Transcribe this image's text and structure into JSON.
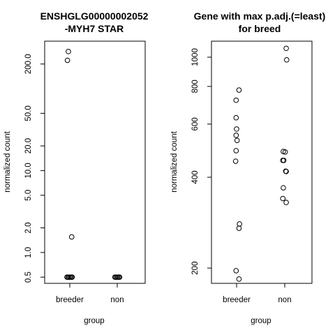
{
  "chart_data": [
    {
      "type": "scatter",
      "title_lines": [
        "ENSHGLG00000002052",
        "-MYH7 STAR"
      ],
      "xlabel": "group",
      "ylabel": "normalized count",
      "categories": [
        "breeder",
        "non"
      ],
      "y_scale": "log",
      "ylim": [
        0.42,
        380
      ],
      "y_ticks": [
        0.5,
        1.0,
        2.0,
        5.0,
        10.0,
        20.0,
        50.0,
        200.0
      ],
      "y_tick_labels": [
        "0.5",
        "1.0",
        "2.0",
        "5.0",
        "10.0",
        "20.0",
        "50.0",
        "200.0"
      ],
      "series": [
        {
          "points": [
            {
              "x": "breeder",
              "y": 284,
              "jitter": -0.03
            },
            {
              "x": "breeder",
              "y": 222,
              "jitter": -0.05
            },
            {
              "x": "breeder",
              "y": 1.55,
              "jitter": 0.04
            },
            {
              "x": "breeder",
              "y": 0.5,
              "jitter": -0.06
            },
            {
              "x": "breeder",
              "y": 0.5,
              "jitter": -0.04
            },
            {
              "x": "breeder",
              "y": 0.5,
              "jitter": -0.02
            },
            {
              "x": "breeder",
              "y": 0.5,
              "jitter": 0.0
            },
            {
              "x": "breeder",
              "y": 0.5,
              "jitter": 0.02
            },
            {
              "x": "breeder",
              "y": 0.5,
              "jitter": 0.04
            },
            {
              "x": "breeder",
              "y": 0.5,
              "jitter": 0.05
            },
            {
              "x": "non",
              "y": 0.5,
              "jitter": -0.05
            },
            {
              "x": "non",
              "y": 0.5,
              "jitter": -0.03
            },
            {
              "x": "non",
              "y": 0.5,
              "jitter": -0.01
            },
            {
              "x": "non",
              "y": 0.5,
              "jitter": 0.01
            },
            {
              "x": "non",
              "y": 0.5,
              "jitter": 0.03
            },
            {
              "x": "non",
              "y": 0.5,
              "jitter": 0.05
            }
          ]
        }
      ]
    },
    {
      "type": "scatter",
      "title_lines": [
        "Gene with max p.adj.(=least)",
        "for breed"
      ],
      "xlabel": "group",
      "ylabel": "normalized count",
      "categories": [
        "breeder",
        "non"
      ],
      "y_scale": "log",
      "ylim": [
        178,
        1130
      ],
      "y_ticks": [
        200,
        400,
        600,
        800,
        1000
      ],
      "y_tick_labels": [
        "200",
        "400",
        "600",
        "800",
        "1000"
      ],
      "series": [
        {
          "points": [
            {
              "x": "breeder",
              "y": 778,
              "jitter": 0.05
            },
            {
              "x": "breeder",
              "y": 720,
              "jitter": -0.01
            },
            {
              "x": "breeder",
              "y": 630,
              "jitter": -0.01
            },
            {
              "x": "breeder",
              "y": 578,
              "jitter": 0.0
            },
            {
              "x": "breeder",
              "y": 551,
              "jitter": -0.01
            },
            {
              "x": "breeder",
              "y": 530,
              "jitter": 0.01
            },
            {
              "x": "breeder",
              "y": 490,
              "jitter": -0.01
            },
            {
              "x": "breeder",
              "y": 452,
              "jitter": -0.02
            },
            {
              "x": "breeder",
              "y": 280,
              "jitter": 0.06
            },
            {
              "x": "breeder",
              "y": 271,
              "jitter": 0.05
            },
            {
              "x": "breeder",
              "y": 196,
              "jitter": -0.01
            },
            {
              "x": "breeder",
              "y": 184,
              "jitter": 0.05
            },
            {
              "x": "non",
              "y": 1070,
              "jitter": 0.03
            },
            {
              "x": "non",
              "y": 980,
              "jitter": 0.04
            },
            {
              "x": "non",
              "y": 487,
              "jitter": -0.03
            },
            {
              "x": "non",
              "y": 485,
              "jitter": 0.01
            },
            {
              "x": "non",
              "y": 455,
              "jitter": -0.04
            },
            {
              "x": "non",
              "y": 455,
              "jitter": -0.02
            },
            {
              "x": "non",
              "y": 419,
              "jitter": 0.02
            },
            {
              "x": "non",
              "y": 418,
              "jitter": 0.03
            },
            {
              "x": "non",
              "y": 369,
              "jitter": -0.03
            },
            {
              "x": "non",
              "y": 340,
              "jitter": -0.04
            },
            {
              "x": "non",
              "y": 330,
              "jitter": 0.03
            }
          ]
        }
      ]
    }
  ]
}
